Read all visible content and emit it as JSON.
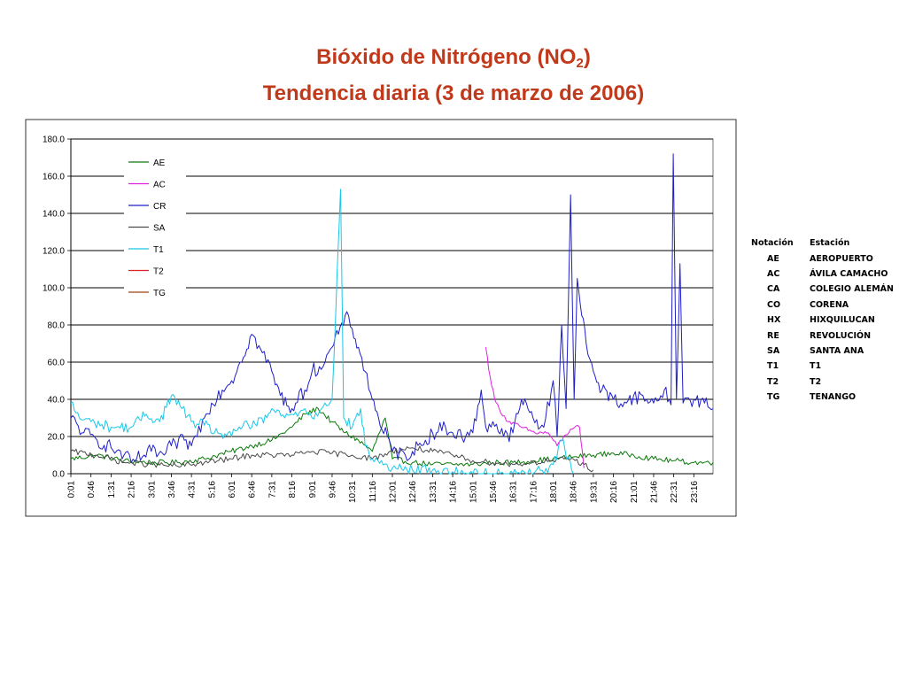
{
  "title": {
    "line1_pre": "Bióxido de Nitrógeno (NO",
    "line1_sub": "2",
    "line1_post": ")",
    "line2": "Tendencia diaria (3 de marzo de 2006)"
  },
  "colors": {
    "title": "#c0391b",
    "AE": "#0a7a0a",
    "AC": "#e020e0",
    "CR": "#1f1fc8",
    "SA": "#4a4a4a",
    "T1": "#18c8e8",
    "T2": "#e02020",
    "TG": "#a04010"
  },
  "chart_data": {
    "type": "line",
    "title": "",
    "xlabel": "",
    "ylabel": "",
    "ylim": [
      0,
      180
    ],
    "y_ticks": [
      "0.0",
      "20.0",
      "40.0",
      "60.0",
      "80.0",
      "100.0",
      "120.0",
      "140.0",
      "160.0",
      "180.0"
    ],
    "x_range": [
      "0:01",
      "23:59"
    ],
    "x_ticks": [
      "0:01",
      "0:46",
      "1:31",
      "2:16",
      "3:01",
      "3:46",
      "4:31",
      "5:16",
      "6:01",
      "6:46",
      "7:31",
      "8:16",
      "9:01",
      "9:46",
      "10:31",
      "11:16",
      "12:01",
      "12:46",
      "13:31",
      "14:16",
      "15:01",
      "15:46",
      "16:31",
      "17:16",
      "18:01",
      "18:46",
      "19:31",
      "20:16",
      "21:01",
      "21:46",
      "22:31",
      "23:16"
    ],
    "grid": "horizontal",
    "legend_position": "top-left",
    "note": "values are approximate readings of noisy minute-level series (x = time of day)",
    "series": [
      {
        "name": "AE",
        "color_key": "AE",
        "points": [
          [
            "0:01",
            8
          ],
          [
            "1:00",
            10
          ],
          [
            "2:00",
            7
          ],
          [
            "3:00",
            6
          ],
          [
            "4:00",
            6
          ],
          [
            "5:00",
            8
          ],
          [
            "6:00",
            12
          ],
          [
            "6:46",
            15
          ],
          [
            "7:31",
            18
          ],
          [
            "8:16",
            25
          ],
          [
            "8:45",
            32
          ],
          [
            "9:15",
            35
          ],
          [
            "9:45",
            28
          ],
          [
            "10:15",
            22
          ],
          [
            "10:45",
            18
          ],
          [
            "11:16",
            12
          ],
          [
            "11:45",
            30
          ],
          [
            "12:01",
            8
          ],
          [
            "12:46",
            6
          ],
          [
            "13:31",
            5
          ],
          [
            "14:16",
            5
          ],
          [
            "15:01",
            5
          ],
          [
            "15:46",
            6
          ],
          [
            "16:31",
            6
          ],
          [
            "17:16",
            7
          ],
          [
            "18:01",
            8
          ],
          [
            "18:46",
            9
          ],
          [
            "19:31",
            10
          ],
          [
            "20:16",
            11
          ],
          [
            "21:01",
            10
          ],
          [
            "21:46",
            8
          ],
          [
            "22:31",
            7
          ],
          [
            "23:16",
            6
          ],
          [
            "23:59",
            6
          ]
        ]
      },
      {
        "name": "AC",
        "color_key": "AC",
        "points": [
          [
            "15:30",
            68
          ],
          [
            "15:40",
            52
          ],
          [
            "15:50",
            40
          ],
          [
            "16:00",
            35
          ],
          [
            "16:20",
            28
          ],
          [
            "16:50",
            25
          ],
          [
            "17:20",
            22
          ],
          [
            "17:50",
            22
          ],
          [
            "18:10",
            15
          ],
          [
            "18:40",
            24
          ],
          [
            "19:00",
            25
          ],
          [
            "19:10",
            3
          ]
        ]
      },
      {
        "name": "CR",
        "color_key": "CR",
        "points": [
          [
            "0:01",
            30
          ],
          [
            "0:30",
            22
          ],
          [
            "1:00",
            18
          ],
          [
            "1:31",
            14
          ],
          [
            "2:00",
            10
          ],
          [
            "2:16",
            6
          ],
          [
            "2:45",
            10
          ],
          [
            "3:01",
            12
          ],
          [
            "3:30",
            10
          ],
          [
            "3:46",
            15
          ],
          [
            "4:15",
            18
          ],
          [
            "4:31",
            15
          ],
          [
            "5:00",
            30
          ],
          [
            "5:16",
            38
          ],
          [
            "5:40",
            45
          ],
          [
            "6:01",
            50
          ],
          [
            "6:20",
            60
          ],
          [
            "6:46",
            75
          ],
          [
            "7:10",
            65
          ],
          [
            "7:31",
            55
          ],
          [
            "7:50",
            42
          ],
          [
            "8:16",
            35
          ],
          [
            "8:45",
            45
          ],
          [
            "9:01",
            55
          ],
          [
            "9:30",
            60
          ],
          [
            "9:46",
            68
          ],
          [
            "10:00",
            75
          ],
          [
            "10:15",
            85
          ],
          [
            "10:31",
            78
          ],
          [
            "10:45",
            68
          ],
          [
            "11:00",
            55
          ],
          [
            "11:16",
            40
          ],
          [
            "11:30",
            30
          ],
          [
            "12:01",
            12
          ],
          [
            "12:30",
            10
          ],
          [
            "12:46",
            12
          ],
          [
            "13:15",
            18
          ],
          [
            "13:31",
            22
          ],
          [
            "14:00",
            25
          ],
          [
            "14:16",
            22
          ],
          [
            "14:45",
            20
          ],
          [
            "15:01",
            22
          ],
          [
            "15:20",
            45
          ],
          [
            "15:30",
            25
          ],
          [
            "15:46",
            28
          ],
          [
            "16:10",
            20
          ],
          [
            "16:31",
            22
          ],
          [
            "16:50",
            40
          ],
          [
            "17:16",
            30
          ],
          [
            "17:40",
            25
          ],
          [
            "18:01",
            50
          ],
          [
            "18:10",
            20
          ],
          [
            "18:20",
            80
          ],
          [
            "18:30",
            35
          ],
          [
            "18:40",
            150
          ],
          [
            "18:48",
            40
          ],
          [
            "18:55",
            105
          ],
          [
            "19:05",
            85
          ],
          [
            "19:15",
            70
          ],
          [
            "19:31",
            55
          ],
          [
            "19:50",
            45
          ],
          [
            "20:16",
            40
          ],
          [
            "20:45",
            38
          ],
          [
            "21:01",
            42
          ],
          [
            "21:30",
            40
          ],
          [
            "21:46",
            38
          ],
          [
            "22:10",
            45
          ],
          [
            "22:25",
            37
          ],
          [
            "22:30",
            172
          ],
          [
            "22:37",
            40
          ],
          [
            "22:45",
            113
          ],
          [
            "22:52",
            38
          ],
          [
            "23:16",
            40
          ],
          [
            "23:40",
            38
          ],
          [
            "23:59",
            35
          ]
        ]
      },
      {
        "name": "SA",
        "color_key": "SA",
        "points": [
          [
            "0:01",
            12
          ],
          [
            "1:00",
            10
          ],
          [
            "2:00",
            6
          ],
          [
            "3:00",
            5
          ],
          [
            "4:00",
            4
          ],
          [
            "5:00",
            6
          ],
          [
            "6:00",
            8
          ],
          [
            "6:46",
            10
          ],
          [
            "7:31",
            10
          ],
          [
            "8:16",
            10
          ],
          [
            "9:01",
            12
          ],
          [
            "9:46",
            11
          ],
          [
            "10:31",
            10
          ],
          [
            "11:16",
            8
          ],
          [
            "12:01",
            12
          ],
          [
            "12:46",
            14
          ],
          [
            "13:31",
            12
          ],
          [
            "14:16",
            10
          ],
          [
            "15:01",
            7
          ],
          [
            "15:46",
            6
          ],
          [
            "16:31",
            5
          ],
          [
            "17:16",
            6
          ],
          [
            "18:01",
            7
          ],
          [
            "18:46",
            8
          ],
          [
            "19:31",
            2
          ]
        ]
      },
      {
        "name": "T1",
        "color_key": "T1",
        "points": [
          [
            "0:01",
            38
          ],
          [
            "0:20",
            30
          ],
          [
            "0:46",
            28
          ],
          [
            "1:31",
            25
          ],
          [
            "2:16",
            25
          ],
          [
            "2:50",
            32
          ],
          [
            "3:20",
            28
          ],
          [
            "3:46",
            42
          ],
          [
            "4:10",
            35
          ],
          [
            "4:31",
            28
          ],
          [
            "5:00",
            26
          ],
          [
            "5:30",
            22
          ],
          [
            "6:01",
            20
          ],
          [
            "6:30",
            28
          ],
          [
            "6:46",
            25
          ],
          [
            "7:20",
            30
          ],
          [
            "7:31",
            35
          ],
          [
            "8:00",
            30
          ],
          [
            "8:16",
            32
          ],
          [
            "8:45",
            35
          ],
          [
            "9:01",
            30
          ],
          [
            "9:30",
            38
          ],
          [
            "9:46",
            40
          ],
          [
            "10:05",
            153
          ],
          [
            "10:12",
            30
          ],
          [
            "10:31",
            25
          ],
          [
            "10:50",
            35
          ],
          [
            "11:00",
            15
          ],
          [
            "11:16",
            8
          ],
          [
            "12:01",
            3
          ],
          [
            "12:46",
            2
          ],
          [
            "13:31",
            2
          ],
          [
            "14:16",
            1
          ],
          [
            "15:01",
            0
          ],
          [
            "15:46",
            0
          ],
          [
            "16:31",
            0
          ],
          [
            "17:16",
            0
          ],
          [
            "18:01",
            5
          ],
          [
            "18:20",
            18
          ],
          [
            "18:46",
            0
          ]
        ]
      },
      {
        "name": "T2",
        "color_key": "T2",
        "points": []
      },
      {
        "name": "TG",
        "color_key": "TG",
        "points": []
      }
    ]
  },
  "legend": {
    "items": [
      {
        "label": "AE",
        "color_key": "AE"
      },
      {
        "label": "AC",
        "color_key": "AC"
      },
      {
        "label": "CR",
        "color_key": "CR"
      },
      {
        "label": "SA",
        "color_key": "SA"
      },
      {
        "label": "T1",
        "color_key": "T1"
      },
      {
        "label": "T2",
        "color_key": "T2"
      },
      {
        "label": "TG",
        "color_key": "TG"
      }
    ]
  },
  "stations_table": {
    "headers": [
      "Notación",
      "Estación"
    ],
    "rows": [
      [
        "AE",
        "AEROPUERTO"
      ],
      [
        "AC",
        "ÁVILA CAMACHO"
      ],
      [
        "CA",
        "COLEGIO ALEMÁN"
      ],
      [
        "CO",
        "CORENA"
      ],
      [
        "HX",
        "HIXQUILUCAN"
      ],
      [
        "RE",
        "REVOLUCIÓN"
      ],
      [
        "SA",
        "SANTA ANA"
      ],
      [
        "T1",
        "T1"
      ],
      [
        "T2",
        "T2"
      ],
      [
        "TG",
        "TENANGO"
      ]
    ]
  }
}
